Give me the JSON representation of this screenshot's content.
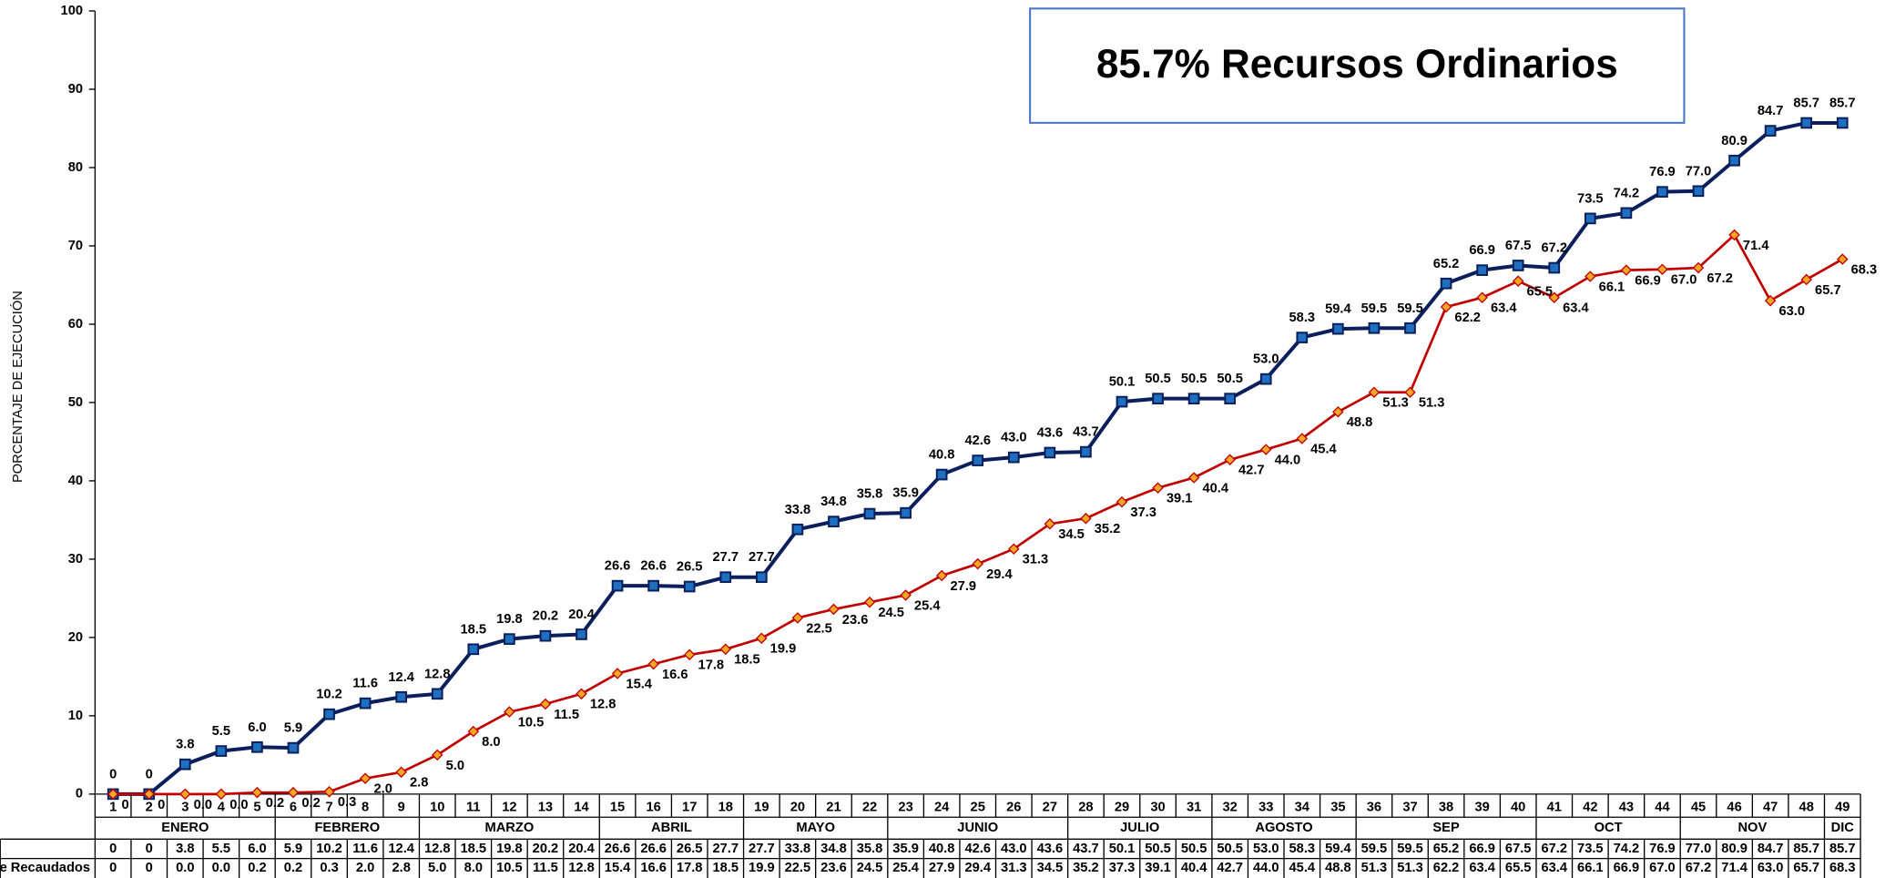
{
  "chart_data": {
    "type": "line",
    "title": "85.7% Recursos Ordinarios",
    "y_label": "PORCENTAJE DE EJECUCIÓN",
    "categories": [
      1,
      2,
      3,
      4,
      5,
      6,
      7,
      8,
      9,
      10,
      11,
      12,
      13,
      14,
      15,
      16,
      17,
      18,
      19,
      20,
      21,
      22,
      23,
      24,
      25,
      26,
      27,
      28,
      29,
      30,
      31,
      32,
      33,
      34,
      35,
      36,
      37,
      38,
      39,
      40,
      41,
      42,
      43,
      44,
      45,
      46,
      47,
      48,
      49
    ],
    "month_of_week": [
      "ENERO",
      "ENERO",
      "ENERO",
      "ENERO",
      "ENERO",
      "FEBRERO",
      "FEBRERO",
      "FEBRERO",
      "FEBRERO",
      "MARZO",
      "MARZO",
      "MARZO",
      "MARZO",
      "MARZO",
      "ABRIL",
      "ABRIL",
      "ABRIL",
      "ABRIL",
      "MAYO",
      "MAYO",
      "MAYO",
      "MAYO",
      "JUNIO",
      "JUNIO",
      "JUNIO",
      "JUNIO",
      "JUNIO",
      "JULIO",
      "JULIO",
      "JULIO",
      "JULIO",
      "AGOSTO",
      "AGOSTO",
      "AGOSTO",
      "AGOSTO",
      "SEP",
      "SEP",
      "SEP",
      "SEP",
      "SEP",
      "OCT",
      "OCT",
      "OCT",
      "OCT",
      "NOV",
      "NOV",
      "NOV",
      "NOV",
      "DIC"
    ],
    "ylim": [
      0,
      100
    ],
    "yticks": [
      0,
      10,
      20,
      30,
      40,
      50,
      60,
      70,
      80,
      90,
      100
    ],
    "series": [
      {
        "color": "#0a1f5c",
        "marker_fill": "#1f6fc0",
        "marker": "square",
        "values": [
          0,
          0,
          3.8,
          5.5,
          6.0,
          5.9,
          10.2,
          11.6,
          12.4,
          12.8,
          18.5,
          19.8,
          20.2,
          20.4,
          26.6,
          26.6,
          26.5,
          27.7,
          27.7,
          33.8,
          34.8,
          35.8,
          35.9,
          40.8,
          42.6,
          43.0,
          43.6,
          43.7,
          50.1,
          50.5,
          50.5,
          50.5,
          53.0,
          58.3,
          59.4,
          59.5,
          59.5,
          65.2,
          66.9,
          67.5,
          67.2,
          73.5,
          74.2,
          76.9,
          77.0,
          80.9,
          84.7,
          85.7,
          85.7
        ],
        "value_labels": [
          "0",
          "0",
          "3.8",
          "5.5",
          "6.0",
          "5.9",
          "10.2",
          "11.6",
          "12.4",
          "12.8",
          "18.5",
          "19.8",
          "20.2",
          "20.4",
          "26.6",
          "26.6",
          "26.5",
          "27.7",
          "27.7",
          "33.8",
          "34.8",
          "35.8",
          "35.9",
          "40.8",
          "42.6",
          "43.0",
          "43.6",
          "43.7",
          "50.1",
          "50.5",
          "50.5",
          "50.5",
          "53.0",
          "58.3",
          "59.4",
          "59.5",
          "59.5",
          "65.2",
          "66.9",
          "67.5",
          "67.2",
          "73.5",
          "74.2",
          "76.9",
          "77.0",
          "80.9",
          "84.7",
          "85.7",
          "85.7"
        ]
      },
      {
        "name": "e Recaudados",
        "color": "#c00000",
        "marker_fill": "#f5a623",
        "marker": "diamond",
        "values": [
          0,
          0,
          0.0,
          0.0,
          0.2,
          0.2,
          0.3,
          2.0,
          2.8,
          5.0,
          8.0,
          10.5,
          11.5,
          12.8,
          15.4,
          16.6,
          17.8,
          18.5,
          19.9,
          22.5,
          23.6,
          24.5,
          25.4,
          27.9,
          29.4,
          31.3,
          34.5,
          35.2,
          37.3,
          39.1,
          40.4,
          42.7,
          44.0,
          45.4,
          48.8,
          51.3,
          51.3,
          62.2,
          63.4,
          65.5,
          63.4,
          66.1,
          66.9,
          67.0,
          67.2,
          71.4,
          63.0,
          65.7,
          68.3
        ],
        "value_labels": [
          "0",
          "0",
          "0.0",
          "0.0",
          "0.2",
          "0.2",
          "0.3",
          "2.0",
          "2.8",
          "5.0",
          "8.0",
          "10.5",
          "11.5",
          "12.8",
          "15.4",
          "16.6",
          "17.8",
          "18.5",
          "19.9",
          "22.5",
          "23.6",
          "24.5",
          "25.4",
          "27.9",
          "29.4",
          "31.3",
          "34.5",
          "35.2",
          "37.3",
          "39.1",
          "40.4",
          "42.7",
          "44.0",
          "45.4",
          "48.8",
          "51.3",
          "51.3",
          "62.2",
          "63.4",
          "65.5",
          "63.4",
          "66.1",
          "66.9",
          "67.0",
          "67.2",
          "71.4",
          "63.0",
          "65.7",
          "68.3"
        ]
      }
    ]
  }
}
